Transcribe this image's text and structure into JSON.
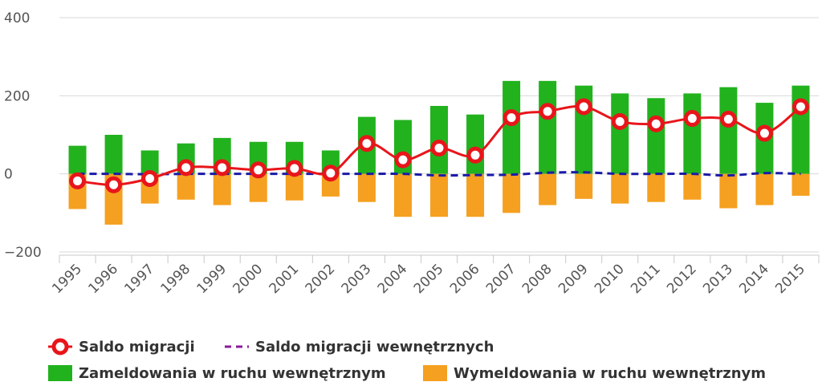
{
  "chart_data": {
    "type": "bar",
    "categories": [
      "1995",
      "1996",
      "1997",
      "1998",
      "1999",
      "2000",
      "2001",
      "2002",
      "2003",
      "2004",
      "2005",
      "2006",
      "2007",
      "2008",
      "2009",
      "2010",
      "2011",
      "2012",
      "2013",
      "2014",
      "2015"
    ],
    "ylim": [
      -200,
      400
    ],
    "yticks": [
      -200,
      0,
      200,
      400
    ],
    "ytick_labels": [
      "−200",
      "0",
      "200",
      "400"
    ],
    "grid": true,
    "legend_position": "bottom-left",
    "series": [
      {
        "name": "Zameldowania w ruchu wewnętrznym",
        "type": "bar",
        "color": "#22b21e",
        "values": [
          72,
          100,
          60,
          78,
          92,
          82,
          82,
          60,
          146,
          138,
          174,
          152,
          238,
          238,
          226,
          206,
          194,
          206,
          222,
          182,
          226
        ]
      },
      {
        "name": "Wymeldowania w ruchu wewnętrznym",
        "type": "bar",
        "color": "#f5a020",
        "values": [
          -90,
          -130,
          -76,
          -66,
          -80,
          -72,
          -68,
          -58,
          -72,
          -110,
          -110,
          -110,
          -100,
          -80,
          -64,
          -76,
          -72,
          -66,
          -88,
          -80,
          -56
        ]
      },
      {
        "name": "Saldo migracji",
        "type": "line",
        "color": "#e8151b",
        "values": [
          -18,
          -28,
          -12,
          16,
          16,
          10,
          14,
          2,
          78,
          36,
          66,
          48,
          144,
          160,
          172,
          134,
          128,
          142,
          140,
          104,
          172
        ]
      },
      {
        "name": "Saldo migracji wewnętrznych",
        "type": "line",
        "color": "#1a1aa8",
        "values": [
          0,
          0,
          -1,
          0,
          0,
          0,
          0,
          0,
          0,
          0,
          -4,
          -3,
          -2,
          3,
          4,
          0,
          0,
          0,
          -4,
          2,
          0
        ]
      }
    ]
  }
}
